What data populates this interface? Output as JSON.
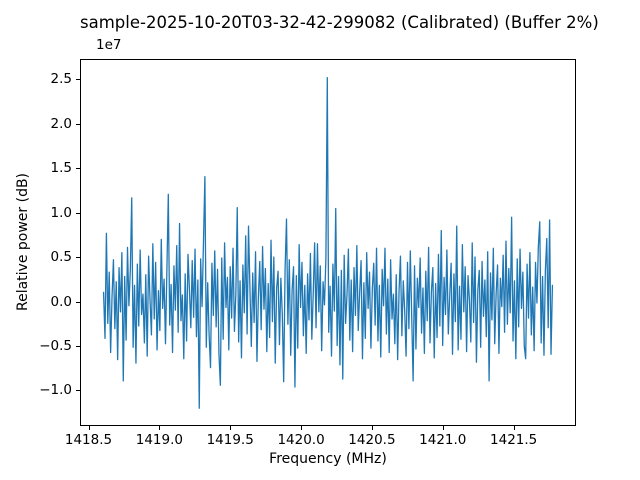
{
  "chart_data": {
    "type": "line",
    "title": "sample-2025-10-20T03-32-42-299082 (Calibrated) (Buffer 2%)",
    "xlabel": "Frequency (MHz)",
    "ylabel": "Relative power (dB)",
    "y_offset_text": "1e7",
    "grid": false,
    "legend": null,
    "xlim": [
      1418.44,
      1421.94
    ],
    "ylim_e7": [
      -1.4,
      2.73
    ],
    "x_ticks": [
      {
        "value": 1418.5,
        "label": "1418.5"
      },
      {
        "value": 1419.0,
        "label": "1419.0"
      },
      {
        "value": 1419.5,
        "label": "1419.5"
      },
      {
        "value": 1420.0,
        "label": "1420.0"
      },
      {
        "value": 1420.5,
        "label": "1420.5"
      },
      {
        "value": 1421.0,
        "label": "1421.0"
      },
      {
        "value": 1421.5,
        "label": "1421.5"
      }
    ],
    "y_ticks": [
      {
        "value": 2.5,
        "label": "2.5"
      },
      {
        "value": 2.0,
        "label": "2.0"
      },
      {
        "value": 1.5,
        "label": "1.5"
      },
      {
        "value": 1.0,
        "label": "1.0"
      },
      {
        "value": 0.5,
        "label": "0.5"
      },
      {
        "value": 0.0,
        "label": "0.0"
      },
      {
        "value": -0.5,
        "label": "−0.5"
      },
      {
        "value": -1.0,
        "label": "−1.0"
      }
    ],
    "notable_peak": {
      "frequency_mhz": 1420.19,
      "value_e7": 2.53
    },
    "series": [
      {
        "name": "calibrated-spectrum",
        "color": "#1f77b4",
        "x_start": 1418.6,
        "x_end": 1421.78,
        "values_unit": "1e7",
        "values_e7": [
          0.1,
          -0.42,
          0.77,
          -0.25,
          0.33,
          -0.58,
          0.05,
          0.47,
          -0.31,
          0.22,
          -0.66,
          0.38,
          -0.12,
          0.55,
          -0.9,
          0.28,
          -0.44,
          0.61,
          -0.05,
          0.35,
          1.17,
          -0.52,
          0.18,
          -0.7,
          0.42,
          -0.28,
          0.58,
          -0.15,
          0.08,
          -0.47,
          0.3,
          -0.62,
          0.51,
          0.02,
          -0.38,
          0.65,
          -0.2,
          0.44,
          -0.55,
          0.12,
          -0.33,
          0.7,
          -0.08,
          0.25,
          -0.48,
          0.36,
          1.21,
          -0.27,
          0.19,
          -0.58,
          0.4,
          -0.1,
          0.63,
          -0.35,
          0.88,
          -0.22,
          0.07,
          -0.65,
          0.31,
          -0.45,
          0.53,
          0.14,
          -0.3,
          0.46,
          -0.18,
          0.59,
          -0.4,
          0.24,
          -1.21,
          0.48,
          -0.06,
          0.67,
          1.41,
          -0.52,
          0.21,
          -0.38,
          -0.75,
          0.43,
          -0.16,
          0.57,
          -0.29,
          0.36,
          -0.6,
          -0.95,
          0.49,
          -0.43,
          0.66,
          -0.07,
          0.27,
          -0.55,
          0.39,
          -0.19,
          0.6,
          -0.34,
          0.08,
          1.06,
          -0.46,
          0.23,
          -0.64,
          0.41,
          -0.13,
          0.74,
          -0.37,
          0.85,
          0.16,
          -0.51,
          0.32,
          -0.24,
          0.56,
          -0.68,
          0.04,
          0.45,
          -0.32,
          0.62,
          -0.09,
          0.37,
          -0.57,
          0.2,
          -0.41,
          0.69,
          -0.23,
          0.5,
          -0.7,
          0.15,
          0.34,
          -0.49,
          0.26,
          -0.14,
          -0.91,
          0.36,
          0.93,
          -0.26,
          0.47,
          -0.61,
          0.13,
          0.39,
          -0.97,
          0.29,
          -0.53,
          0.64,
          -0.07,
          0.44,
          -0.39,
          0.18,
          -0.59,
          0.31,
          -0.21,
          0.54,
          -0.43,
          0.09,
          0.66,
          -0.3,
          0.65,
          -0.12,
          0.4,
          -0.56,
          0.22,
          -0.04,
          0.48,
          2.53,
          -0.35,
          0.17,
          -0.62,
          0.42,
          -0.11,
          1.05,
          -0.5,
          0.28,
          -0.72,
          0.35,
          -0.88,
          0.52,
          -0.25,
          0.07,
          0.59,
          -0.44,
          0.24,
          -0.57,
          0.38,
          -0.16,
          0.63,
          -0.33,
          0.1,
          0.46,
          -0.65,
          0.21,
          -0.42,
          0.55,
          -0.08,
          0.33,
          -0.53,
          0.14,
          0.43,
          -0.27,
          0.6,
          -0.45,
          0.18,
          -0.63,
          0.36,
          -0.05,
          0.6,
          -0.37,
          0.25,
          -0.58,
          0.47,
          -0.2,
          0.08,
          -0.48,
          0.3,
          -0.66,
          0.12,
          0.51,
          -0.39,
          0.23,
          -0.1,
          -0.62,
          0.44,
          -0.31,
          0.57,
          -0.18,
          -0.9,
          0.4,
          -0.54,
          0.26,
          -0.07,
          0.49,
          -0.36,
          0.15,
          -0.59,
          0.34,
          -0.22,
          0.61,
          -0.47,
          0.11,
          0.38,
          -0.64,
          0.2,
          -0.41,
          0.53,
          -0.28,
          0.8,
          -0.5,
          0.27,
          -0.15,
          0.58,
          -0.37,
          0.06,
          0.43,
          -0.6,
          0.31,
          -0.23,
          0.85,
          -0.55,
          0.17,
          -0.43,
          0.64,
          -0.12,
          0.39,
          -0.57,
          0.29,
          0.02,
          -0.46,
          0.66,
          -0.24,
          0.5,
          -0.69,
          0.13,
          0.35,
          -0.52,
          0.45,
          -0.17,
          0.24,
          -0.4,
          0.56,
          -0.9,
          0.32,
          -0.21,
          0.6,
          -0.48,
          0.09,
          0.41,
          -0.59,
          0.26,
          -0.06,
          0.52,
          -0.35,
          0.68,
          -0.26,
          0.37,
          -0.13,
          0.95,
          -0.45,
          0.23,
          -0.65,
          0.48,
          -0.29,
          0.59,
          -0.08,
          0.33,
          -0.51,
          -0.65,
          0.42,
          -0.19,
          0.55,
          -0.38,
          0.16,
          -0.56,
          0.44,
          -0.02,
          0.62,
          0.9,
          -0.47,
          0.28,
          -0.61,
          0.35,
          0.71,
          -0.3,
          0.92,
          -0.6,
          0.18
        ]
      }
    ]
  }
}
